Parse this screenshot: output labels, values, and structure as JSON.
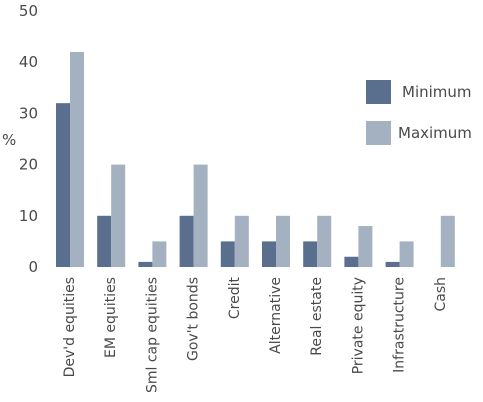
{
  "chart_data": {
    "type": "bar",
    "title": "",
    "xlabel": "",
    "ylabel": "%",
    "ylim": [
      0,
      50
    ],
    "yticks": [
      0,
      10,
      20,
      30,
      40,
      50
    ],
    "grid": false,
    "legend_position": "right",
    "categories": [
      "Dev'd equities",
      "EM equities",
      "Sml cap equities",
      "Gov't bonds",
      "Credit",
      "Alternative",
      "Real estate",
      "Private equity",
      "Infrastructure",
      "Cash"
    ],
    "series": [
      {
        "name": "Minimum",
        "color": "#5a6f8d",
        "values": [
          32,
          10,
          1,
          10,
          5,
          5,
          5,
          2,
          1,
          0
        ]
      },
      {
        "name": "Maximum",
        "color": "#a4b1c1",
        "values": [
          42,
          20,
          5,
          20,
          10,
          10,
          10,
          8,
          5,
          10
        ]
      }
    ]
  }
}
